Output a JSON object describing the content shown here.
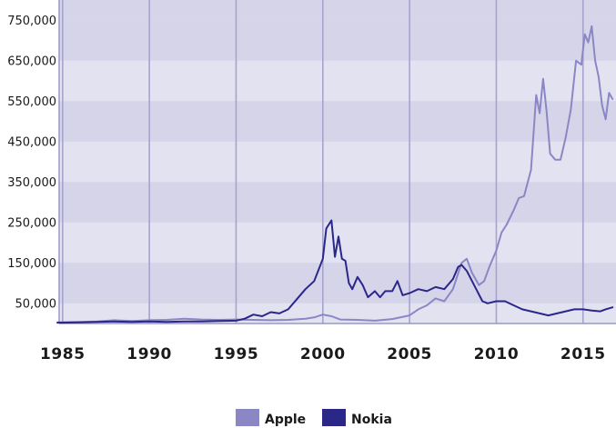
{
  "chart_data": {
    "type": "line",
    "title": "",
    "xlabel": "",
    "ylabel": "",
    "xlim": [
      1985,
      2016.7
    ],
    "ylim": [
      0,
      800000
    ],
    "x_ticks": [
      {
        "value": 1985,
        "label": "1985"
      },
      {
        "value": 1990,
        "label": "1990"
      },
      {
        "value": 1995,
        "label": "1995"
      },
      {
        "value": 2000,
        "label": "2000"
      },
      {
        "value": 2005,
        "label": "2005"
      },
      {
        "value": 2010,
        "label": "2010"
      },
      {
        "value": 2015,
        "label": "2015"
      }
    ],
    "y_ticks": [
      {
        "value": 50000,
        "label": "50,000"
      },
      {
        "value": 150000,
        "label": "150,000"
      },
      {
        "value": 250000,
        "label": "250,000"
      },
      {
        "value": 350000,
        "label": "350,000"
      },
      {
        "value": 450000,
        "label": "450,000"
      },
      {
        "value": 550000,
        "label": "550,000"
      },
      {
        "value": 650000,
        "label": "650,000"
      },
      {
        "value": 750000,
        "label": "750,000"
      }
    ],
    "grid": "alternating horizontal bands, vertical lines at labeled years",
    "legend_placement": "bottom-center",
    "colors": {
      "band_light": "#e3e2f0",
      "band_dark": "#d6d4e9",
      "vertical_grid": "#a6a3cf",
      "axis": "#9a97c6"
    },
    "series": [
      {
        "name": "Apple",
        "color": "#8b86c4",
        "points": [
          [
            1984.7,
            3000
          ],
          [
            1986,
            4000
          ],
          [
            1987,
            5000
          ],
          [
            1988,
            8000
          ],
          [
            1989,
            6000
          ],
          [
            1990,
            8000
          ],
          [
            1991,
            9000
          ],
          [
            1992,
            12000
          ],
          [
            1993,
            10000
          ],
          [
            1994,
            9000
          ],
          [
            1995,
            10000
          ],
          [
            1996,
            9000
          ],
          [
            1997,
            8000
          ],
          [
            1998,
            9000
          ],
          [
            1999,
            12000
          ],
          [
            1999.5,
            15000
          ],
          [
            2000.0,
            22000
          ],
          [
            2000.5,
            18000
          ],
          [
            2001,
            10000
          ],
          [
            2002,
            9000
          ],
          [
            2003,
            7000
          ],
          [
            2004,
            11000
          ],
          [
            2005,
            20000
          ],
          [
            2005.5,
            35000
          ],
          [
            2006,
            45000
          ],
          [
            2006.5,
            62000
          ],
          [
            2007,
            55000
          ],
          [
            2007.5,
            85000
          ],
          [
            2008,
            150000
          ],
          [
            2008.3,
            160000
          ],
          [
            2008.6,
            125000
          ],
          [
            2009,
            95000
          ],
          [
            2009.3,
            105000
          ],
          [
            2009.6,
            140000
          ],
          [
            2010,
            180000
          ],
          [
            2010.3,
            225000
          ],
          [
            2010.6,
            245000
          ],
          [
            2011,
            280000
          ],
          [
            2011.3,
            310000
          ],
          [
            2011.6,
            315000
          ],
          [
            2012,
            380000
          ],
          [
            2012.3,
            565000
          ],
          [
            2012.5,
            520000
          ],
          [
            2012.7,
            605000
          ],
          [
            2012.9,
            525000
          ],
          [
            2013.1,
            420000
          ],
          [
            2013.4,
            405000
          ],
          [
            2013.7,
            405000
          ],
          [
            2014,
            460000
          ],
          [
            2014.3,
            530000
          ],
          [
            2014.6,
            650000
          ],
          [
            2014.9,
            640000
          ],
          [
            2015.1,
            715000
          ],
          [
            2015.3,
            695000
          ],
          [
            2015.5,
            735000
          ],
          [
            2015.7,
            650000
          ],
          [
            2015.9,
            610000
          ],
          [
            2016.1,
            540000
          ],
          [
            2016.3,
            505000
          ],
          [
            2016.5,
            570000
          ],
          [
            2016.7,
            555000
          ]
        ]
      },
      {
        "name": "Nokia",
        "color": "#2a2789",
        "points": [
          [
            1984.7,
            2000
          ],
          [
            1986,
            3000
          ],
          [
            1987,
            4000
          ],
          [
            1988,
            5000
          ],
          [
            1989,
            4000
          ],
          [
            1990,
            5000
          ],
          [
            1991,
            4000
          ],
          [
            1992,
            5000
          ],
          [
            1993,
            5000
          ],
          [
            1994,
            6000
          ],
          [
            1995,
            7000
          ],
          [
            1995.5,
            12000
          ],
          [
            1996,
            22000
          ],
          [
            1996.5,
            18000
          ],
          [
            1997,
            28000
          ],
          [
            1997.5,
            25000
          ],
          [
            1998,
            35000
          ],
          [
            1998.5,
            60000
          ],
          [
            1999,
            85000
          ],
          [
            1999.5,
            105000
          ],
          [
            2000,
            160000
          ],
          [
            2000.2,
            235000
          ],
          [
            2000.5,
            255000
          ],
          [
            2000.7,
            165000
          ],
          [
            2000.9,
            215000
          ],
          [
            2001.1,
            160000
          ],
          [
            2001.3,
            155000
          ],
          [
            2001.5,
            100000
          ],
          [
            2001.7,
            85000
          ],
          [
            2002,
            115000
          ],
          [
            2002.3,
            95000
          ],
          [
            2002.6,
            65000
          ],
          [
            2003,
            80000
          ],
          [
            2003.3,
            65000
          ],
          [
            2003.6,
            80000
          ],
          [
            2004,
            80000
          ],
          [
            2004.3,
            105000
          ],
          [
            2004.6,
            70000
          ],
          [
            2005,
            75000
          ],
          [
            2005.5,
            85000
          ],
          [
            2006,
            80000
          ],
          [
            2006.5,
            90000
          ],
          [
            2007,
            85000
          ],
          [
            2007.5,
            110000
          ],
          [
            2007.8,
            140000
          ],
          [
            2008,
            145000
          ],
          [
            2008.3,
            130000
          ],
          [
            2008.6,
            105000
          ],
          [
            2008.9,
            80000
          ],
          [
            2009.2,
            55000
          ],
          [
            2009.5,
            50000
          ],
          [
            2010,
            55000
          ],
          [
            2010.5,
            55000
          ],
          [
            2011,
            45000
          ],
          [
            2011.5,
            35000
          ],
          [
            2012,
            30000
          ],
          [
            2012.5,
            25000
          ],
          [
            2013,
            20000
          ],
          [
            2013.5,
            25000
          ],
          [
            2014,
            30000
          ],
          [
            2014.5,
            35000
          ],
          [
            2015,
            35000
          ],
          [
            2015.5,
            32000
          ],
          [
            2016,
            30000
          ],
          [
            2016.3,
            35000
          ],
          [
            2016.7,
            40000
          ]
        ]
      }
    ],
    "legend": [
      {
        "label": "Apple",
        "color": "#8b86c4"
      },
      {
        "label": "Nokia",
        "color": "#2a2789"
      }
    ]
  }
}
